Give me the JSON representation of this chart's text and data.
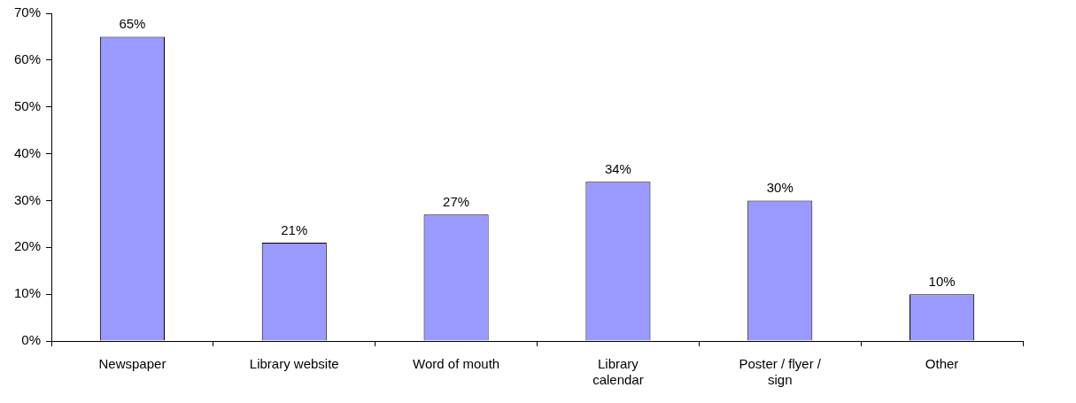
{
  "chart_data": {
    "type": "bar",
    "categories": [
      "Newspaper",
      "Library website",
      "Word of mouth",
      "Library calendar",
      "Poster / flyer / sign",
      "Other"
    ],
    "values": [
      65,
      21,
      27,
      34,
      30,
      10
    ],
    "color": "#9999ff",
    "value_labels": [
      "65%",
      "21%",
      "27%",
      "34%",
      "30%",
      "10%"
    ],
    "ylim": [
      0,
      70
    ],
    "yticks": [
      {
        "value": 0,
        "label": "0%"
      },
      {
        "value": 10,
        "label": "10%"
      },
      {
        "value": 20,
        "label": "20%"
      },
      {
        "value": 30,
        "label": "30%"
      },
      {
        "value": 40,
        "label": "40%"
      },
      {
        "value": 50,
        "label": "50%"
      },
      {
        "value": 60,
        "label": "60%"
      },
      {
        "value": 70,
        "label": "70%"
      }
    ],
    "grid": false,
    "legend": false
  }
}
